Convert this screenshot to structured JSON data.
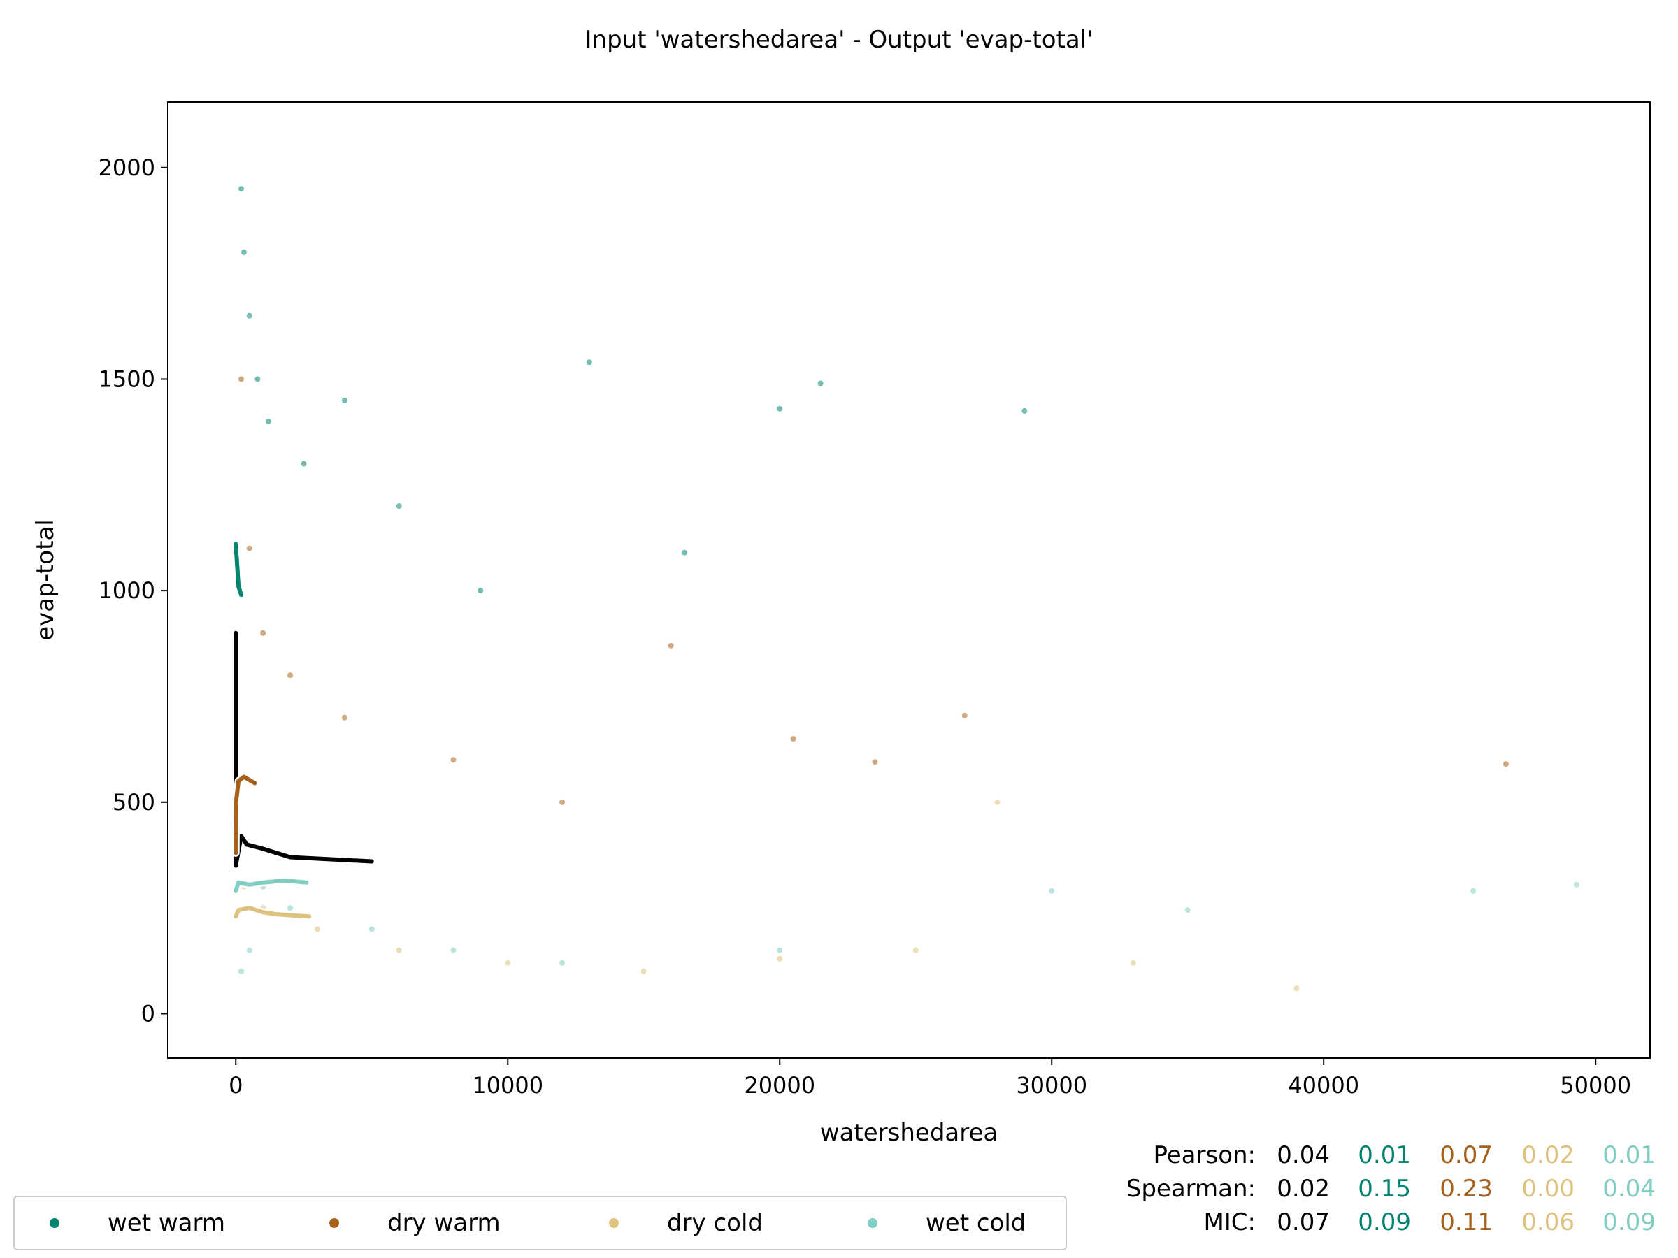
{
  "chart_data": {
    "type": "scatter",
    "title": "Input 'watershedarea' - Output 'evap-total'",
    "xlabel": "watershedarea",
    "ylabel": "evap-total",
    "xlim": [
      -2500,
      52000
    ],
    "ylim": [
      -105,
      2155
    ],
    "xticks": [
      0,
      10000,
      20000,
      30000,
      40000,
      50000
    ],
    "yticks": [
      0,
      500,
      1000,
      1500,
      2000
    ],
    "grid": false,
    "legend_position": "bottom-left, below plot",
    "legend": [
      "wet warm",
      "dry warm",
      "dry cold",
      "wet cold"
    ],
    "series": [
      {
        "name": "wet warm",
        "color": "#018571",
        "sample_points": [
          [
            200,
            1950
          ],
          [
            300,
            1800
          ],
          [
            500,
            1650
          ],
          [
            800,
            1500
          ],
          [
            1200,
            1400
          ],
          [
            2500,
            1300
          ],
          [
            4000,
            1450
          ],
          [
            6000,
            1200
          ],
          [
            9000,
            1000
          ],
          [
            13000,
            1540
          ],
          [
            20000,
            1430
          ],
          [
            21500,
            1490
          ],
          [
            29000,
            1425
          ],
          [
            16500,
            1090
          ]
        ],
        "trend": [
          [
            0,
            1110
          ],
          [
            50,
            1060
          ],
          [
            100,
            1010
          ],
          [
            200,
            990
          ]
        ]
      },
      {
        "name": "dry warm",
        "color": "#a6611a",
        "sample_points": [
          [
            200,
            1500
          ],
          [
            500,
            1100
          ],
          [
            1000,
            900
          ],
          [
            2000,
            800
          ],
          [
            4000,
            700
          ],
          [
            8000,
            600
          ],
          [
            12000,
            500
          ],
          [
            16000,
            870
          ],
          [
            20500,
            650
          ],
          [
            23500,
            595
          ],
          [
            26800,
            705
          ],
          [
            46700,
            590
          ]
        ],
        "trend": [
          [
            0,
            380
          ],
          [
            10,
            500
          ],
          [
            100,
            550
          ],
          [
            300,
            560
          ],
          [
            700,
            545
          ]
        ]
      },
      {
        "name": "dry cold",
        "color": "#dfc27d",
        "sample_points": [
          [
            300,
            300
          ],
          [
            1000,
            250
          ],
          [
            3000,
            200
          ],
          [
            6000,
            150
          ],
          [
            10000,
            120
          ],
          [
            15000,
            100
          ],
          [
            20000,
            130
          ],
          [
            25000,
            150
          ],
          [
            28000,
            500
          ],
          [
            33000,
            120
          ],
          [
            39000,
            60
          ]
        ],
        "trend": [
          [
            0,
            230
          ],
          [
            100,
            245
          ],
          [
            500,
            250
          ],
          [
            1000,
            240
          ],
          [
            1500,
            235
          ],
          [
            2700,
            230
          ]
        ]
      },
      {
        "name": "wet cold",
        "color": "#80cdc1",
        "sample_points": [
          [
            200,
            100
          ],
          [
            500,
            150
          ],
          [
            1000,
            300
          ],
          [
            2000,
            250
          ],
          [
            5000,
            200
          ],
          [
            8000,
            150
          ],
          [
            12000,
            120
          ],
          [
            20000,
            150
          ],
          [
            30000,
            290
          ],
          [
            35000,
            245
          ],
          [
            45500,
            290
          ],
          [
            49300,
            305
          ]
        ],
        "trend": [
          [
            0,
            290
          ],
          [
            100,
            310
          ],
          [
            500,
            305
          ],
          [
            1000,
            310
          ],
          [
            1800,
            315
          ],
          [
            2600,
            310
          ]
        ]
      }
    ],
    "overall_trend": {
      "name": "all",
      "color": "#000000",
      "points": [
        [
          0,
          900
        ],
        [
          0,
          500
        ],
        [
          0,
          350
        ],
        [
          200,
          420
        ],
        [
          400,
          400
        ],
        [
          1000,
          390
        ],
        [
          2000,
          370
        ],
        [
          3500,
          365
        ],
        [
          5000,
          360
        ]
      ]
    },
    "stats": {
      "rows": [
        {
          "label": "Pearson:",
          "values": [
            "0.04",
            "0.01",
            "0.07",
            "0.02",
            "0.01"
          ]
        },
        {
          "label": "Spearman:",
          "values": [
            "0.02",
            "0.15",
            "0.23",
            "0.00",
            "0.04"
          ]
        },
        {
          "label": "MIC:",
          "values": [
            "0.07",
            "0.09",
            "0.11",
            "0.06",
            "0.09"
          ]
        }
      ],
      "colors": [
        "#000000",
        "#018571",
        "#a6611a",
        "#dfc27d",
        "#80cdc1"
      ]
    }
  }
}
